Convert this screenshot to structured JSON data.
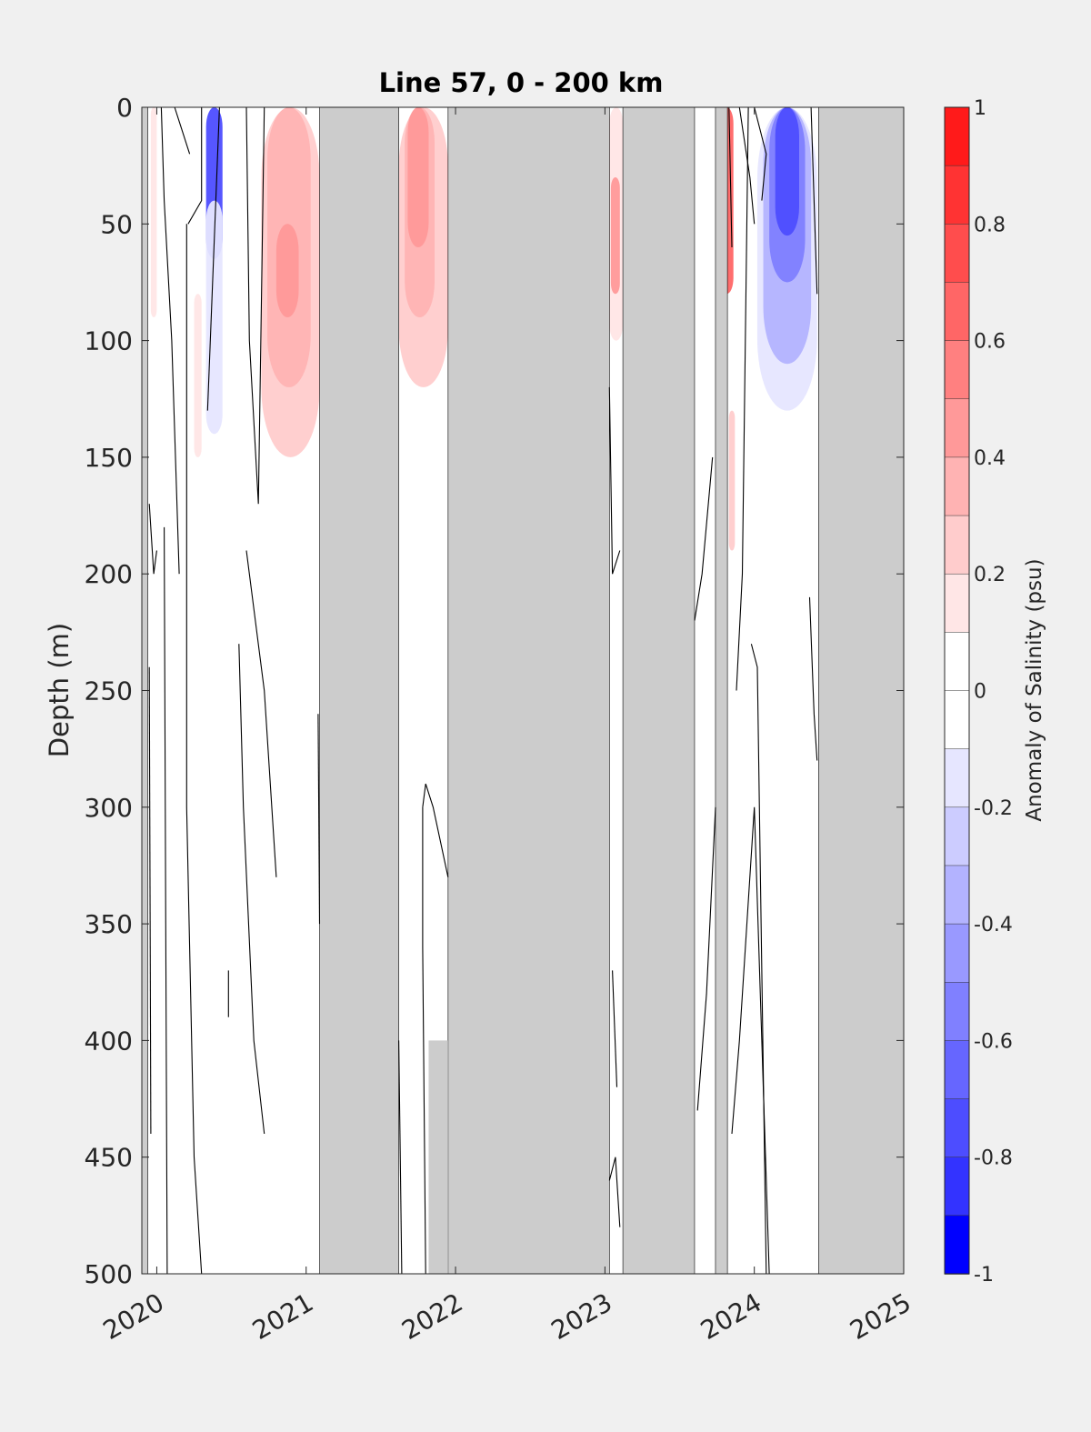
{
  "chart_data": {
    "type": "heatmap",
    "title": "Line 57, 0 - 200 km",
    "ylabel": "Depth (m)",
    "xlabel": "",
    "xlim": [
      2019.9,
      2025
    ],
    "ylim": [
      500,
      0
    ],
    "y_reversed": true,
    "x_ticks": [
      2020,
      2021,
      2022,
      2023,
      2024,
      2025
    ],
    "x_tick_labels": [
      "2020",
      "2021",
      "2022",
      "2023",
      "2024",
      "2025"
    ],
    "y_ticks": [
      0,
      50,
      100,
      150,
      200,
      250,
      300,
      350,
      400,
      450,
      500
    ],
    "y_tick_labels": [
      "0",
      "50",
      "100",
      "150",
      "200",
      "250",
      "300",
      "350",
      "400",
      "450",
      "500"
    ],
    "grid": false,
    "colorbar": {
      "label": "Anomaly of Salinity (psu)",
      "range": [
        -1,
        1
      ],
      "step": 0.1,
      "ticks": [
        1,
        0.8,
        0.6,
        0.4,
        0.2,
        0,
        -0.2,
        -0.4,
        -0.6,
        -0.8,
        -1
      ],
      "tick_labels": [
        "1",
        "0.8",
        "0.6",
        "0.4",
        "0.2",
        "0",
        "-0.2",
        "-0.4",
        "-0.6",
        "-0.8",
        "-1"
      ],
      "colors": [
        "#ff0000",
        "#ff1a1a",
        "#ff3333",
        "#ff4d4d",
        "#ff6666",
        "#ff8080",
        "#ff9999",
        "#ffb3b3",
        "#ffcccc",
        "#ffe6e6",
        "#ffffff",
        "#ffffff",
        "#e6e6ff",
        "#ccccff",
        "#b3b3ff",
        "#9999ff",
        "#8080ff",
        "#6666ff",
        "#4d4dff",
        "#3333ff",
        "#0000ff"
      ],
      "position": "right"
    },
    "no_data_color": "#cccccc",
    "no_data_intervals": [
      [
        2019.9,
        2019.94
      ],
      [
        2021.09,
        2021.62
      ],
      [
        2021.95,
        2023.03
      ],
      [
        2023.12,
        2023.6
      ],
      [
        2023.74,
        2023.82
      ],
      [
        2024.43,
        2025.0
      ]
    ],
    "partial_no_data": [
      {
        "x": [
          2021.82,
          2021.95
        ],
        "depth_from": 400,
        "depth_to": 500
      }
    ],
    "anomaly_patches": [
      {
        "x": [
          2019.96,
          2020.0
        ],
        "depth": [
          0,
          90
        ],
        "value": 0.12
      },
      {
        "x": [
          2020.09,
          2020.12
        ],
        "depth": [
          60,
          95
        ],
        "value": -0.12
      },
      {
        "x": [
          2020.25,
          2020.3
        ],
        "depth": [
          80,
          150
        ],
        "value": 0.15
      },
      {
        "x": [
          2020.33,
          2020.44
        ],
        "depth": [
          0,
          65
        ],
        "value": -0.75
      },
      {
        "x": [
          2020.33,
          2020.44
        ],
        "depth": [
          40,
          140
        ],
        "value": -0.2
      },
      {
        "x": [
          2020.7,
          2021.09
        ],
        "depth": [
          0,
          150
        ],
        "value": 0.18
      },
      {
        "x": [
          2020.74,
          2021.03
        ],
        "depth": [
          0,
          120
        ],
        "value": 0.3
      },
      {
        "x": [
          2020.8,
          2020.95
        ],
        "depth": [
          50,
          90
        ],
        "value": 0.45
      },
      {
        "x": [
          2021.62,
          2021.95
        ],
        "depth": [
          0,
          120
        ],
        "value": 0.18
      },
      {
        "x": [
          2021.66,
          2021.86
        ],
        "depth": [
          0,
          90
        ],
        "value": 0.3
      },
      {
        "x": [
          2021.68,
          2021.82
        ],
        "depth": [
          0,
          60
        ],
        "value": 0.45
      },
      {
        "x": [
          2023.03,
          2023.12
        ],
        "depth": [
          0,
          100
        ],
        "value": 0.15
      },
      {
        "x": [
          2023.04,
          2023.1
        ],
        "depth": [
          30,
          80
        ],
        "value": 0.45
      },
      {
        "x": [
          2023.6,
          2024.02
        ],
        "depth": [
          40,
          110
        ],
        "value": -0.13
      },
      {
        "x": [
          2023.77,
          2023.86
        ],
        "depth": [
          0,
          80
        ],
        "value": 0.6
      },
      {
        "x": [
          2023.83,
          2023.87
        ],
        "depth": [
          130,
          190
        ],
        "value": 0.2
      },
      {
        "x": [
          2024.02,
          2024.42
        ],
        "depth": [
          0,
          130
        ],
        "value": -0.15
      },
      {
        "x": [
          2024.06,
          2024.38
        ],
        "depth": [
          0,
          110
        ],
        "value": -0.35
      },
      {
        "x": [
          2024.1,
          2024.34
        ],
        "depth": [
          0,
          75
        ],
        "value": -0.55
      },
      {
        "x": [
          2024.14,
          2024.3
        ],
        "depth": [
          0,
          55
        ],
        "value": -0.75
      }
    ],
    "zero_contours": [
      {
        "x": [
          2020.03,
          2020.05,
          2020.1,
          2020.15
        ],
        "depth": [
          0,
          40,
          100,
          200
        ]
      },
      {
        "x": [
          2020.12,
          2020.22
        ],
        "depth": [
          0,
          20
        ]
      },
      {
        "x": [
          2020.21,
          2020.3,
          2020.3
        ],
        "depth": [
          50,
          40,
          0
        ]
      },
      {
        "x": [
          2020.34,
          2020.42
        ],
        "depth": [
          130,
          0
        ]
      },
      {
        "x": [
          2020.2,
          2020.2,
          2020.25,
          2020.3
        ],
        "depth": [
          50,
          300,
          450,
          500
        ]
      },
      {
        "x": [
          2020.6,
          2020.62,
          2020.68,
          2020.72
        ],
        "depth": [
          0,
          100,
          170,
          0
        ]
      },
      {
        "x": [
          2020.55,
          2020.58,
          2020.65,
          2020.72
        ],
        "depth": [
          230,
          300,
          400,
          440
        ]
      },
      {
        "x": [
          2020.6,
          2020.72,
          2020.8
        ],
        "depth": [
          190,
          250,
          330
        ]
      },
      {
        "x": [
          2019.95,
          2019.98,
          2020.0
        ],
        "depth": [
          170,
          200,
          190
        ]
      },
      {
        "x": [
          2019.95,
          2019.96
        ],
        "depth": [
          240,
          440
        ]
      },
      {
        "x": [
          2020.05,
          2020.06,
          2020.07
        ],
        "depth": [
          180,
          350,
          500
        ]
      },
      {
        "x": [
          2020.48,
          2020.48
        ],
        "depth": [
          370,
          390
        ]
      },
      {
        "x": [
          2021.08,
          2021.09
        ],
        "depth": [
          260,
          350
        ]
      },
      {
        "x": [
          2021.78,
          2021.8,
          2021.85,
          2021.95
        ],
        "depth": [
          300,
          290,
          300,
          330
        ]
      },
      {
        "x": [
          2021.78,
          2021.78,
          2021.8
        ],
        "depth": [
          300,
          360,
          500
        ]
      },
      {
        "x": [
          2021.62,
          2021.64
        ],
        "depth": [
          400,
          500
        ]
      },
      {
        "x": [
          2023.03,
          2023.05,
          2023.1
        ],
        "depth": [
          120,
          200,
          190
        ]
      },
      {
        "x": [
          2023.05,
          2023.08
        ],
        "depth": [
          370,
          420
        ]
      },
      {
        "x": [
          2023.03,
          2023.07,
          2023.1
        ],
        "depth": [
          460,
          450,
          480
        ]
      },
      {
        "x": [
          2023.6,
          2023.65,
          2023.72
        ],
        "depth": [
          220,
          200,
          150
        ]
      },
      {
        "x": [
          2023.62,
          2023.68,
          2023.74
        ],
        "depth": [
          430,
          380,
          300
        ]
      },
      {
        "x": [
          2023.9,
          2023.97,
          2024.0
        ],
        "depth": [
          0,
          30,
          50
        ]
      },
      {
        "x": [
          2024.0,
          2024.08,
          2024.05
        ],
        "depth": [
          0,
          20,
          40
        ]
      },
      {
        "x": [
          2023.83,
          2023.85
        ],
        "depth": [
          0,
          60
        ]
      },
      {
        "x": [
          2023.88,
          2023.92,
          2023.96
        ],
        "depth": [
          250,
          200,
          0
        ]
      },
      {
        "x": [
          2023.85,
          2023.9,
          2024.0,
          2024.1
        ],
        "depth": [
          440,
          400,
          300,
          500
        ]
      },
      {
        "x": [
          2023.98,
          2024.02,
          2024.08
        ],
        "depth": [
          230,
          240,
          500
        ]
      },
      {
        "x": [
          2024.38,
          2024.42
        ],
        "depth": [
          0,
          80
        ]
      },
      {
        "x": [
          2024.37,
          2024.4,
          2024.42
        ],
        "depth": [
          210,
          260,
          280
        ]
      }
    ]
  }
}
